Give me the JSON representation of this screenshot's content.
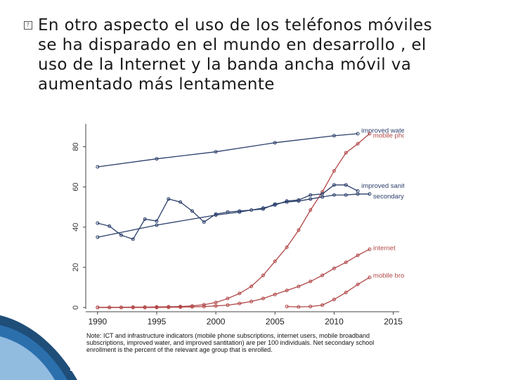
{
  "slide": {
    "bullet_icon": "replacement-box-icon",
    "paragraph": "En otro aspecto el uso de  los teléfonos móviles se ha disparado en el mundo en desarrollo , el uso de la Internet y la banda ancha móvil va aumentado más lentamente",
    "lines": [
      "En otro aspecto el uso de  los teléfonos móviles",
      "se ha disparado en el mundo en desarrollo , el",
      "uso de la Internet y la banda ancha móvil va",
      "aumentado más lentamente"
    ]
  },
  "chart_data": {
    "type": "line",
    "title": "",
    "xlabel": "",
    "ylabel": "",
    "xlim": [
      1989,
      2015.5
    ],
    "ylim": [
      0,
      90
    ],
    "x_ticks": [
      1990,
      1995,
      2000,
      2005,
      2010,
      2015
    ],
    "y_ticks": [
      0,
      20,
      40,
      60,
      80
    ],
    "grid": false,
    "legend": "inline-right",
    "colors": {
      "navy": "#2b3f6b",
      "red": "#b24747"
    },
    "series": [
      {
        "name": "improved water",
        "color": "#2b3f6b",
        "points": [
          [
            1990,
            70
          ],
          [
            1995,
            74
          ],
          [
            2000,
            77.5
          ],
          [
            2005,
            82
          ],
          [
            2010,
            85.5
          ],
          [
            2012,
            86.5
          ]
        ]
      },
      {
        "name": "mobile phone",
        "color": "#b24747",
        "points": [
          [
            1990,
            0.1
          ],
          [
            1991,
            0.1
          ],
          [
            1992,
            0.1
          ],
          [
            1993,
            0.2
          ],
          [
            1994,
            0.2
          ],
          [
            1995,
            0.3
          ],
          [
            1996,
            0.4
          ],
          [
            1997,
            0.5
          ],
          [
            1998,
            0.8
          ],
          [
            1999,
            1.4
          ],
          [
            2000,
            2.5
          ],
          [
            2001,
            4.5
          ],
          [
            2002,
            7
          ],
          [
            2003,
            10.5
          ],
          [
            2004,
            16
          ],
          [
            2005,
            23
          ],
          [
            2006,
            30
          ],
          [
            2007,
            38.5
          ],
          [
            2008,
            48.5
          ],
          [
            2009,
            57.5
          ],
          [
            2010,
            68
          ],
          [
            2011,
            77
          ],
          [
            2012,
            81.5
          ],
          [
            2013,
            86.5
          ]
        ]
      },
      {
        "name": "improved sanitation",
        "color": "#2b3f6b",
        "points": [
          [
            1990,
            35
          ],
          [
            1995,
            41
          ],
          [
            2000,
            46
          ],
          [
            2002,
            47.5
          ],
          [
            2004,
            49.5
          ],
          [
            2005,
            51
          ],
          [
            2006,
            53
          ],
          [
            2007,
            53.5
          ],
          [
            2008,
            56
          ],
          [
            2009,
            56.5
          ],
          [
            2010,
            61
          ],
          [
            2011,
            61
          ],
          [
            2012,
            58
          ]
        ]
      },
      {
        "name": "secondary school",
        "color": "#2b3f6b",
        "points": [
          [
            1990,
            42
          ],
          [
            1991,
            40.5
          ],
          [
            1992,
            36
          ],
          [
            1993,
            34
          ],
          [
            1994,
            44
          ],
          [
            1995,
            43
          ],
          [
            1996,
            54
          ],
          [
            1997,
            52.5
          ],
          [
            1998,
            48
          ],
          [
            1999,
            42.5
          ],
          [
            2000,
            46.5
          ],
          [
            2001,
            47.5
          ],
          [
            2002,
            48
          ],
          [
            2003,
            48.5
          ],
          [
            2004,
            49
          ],
          [
            2005,
            51.5
          ],
          [
            2006,
            52.5
          ],
          [
            2007,
            53
          ],
          [
            2008,
            54
          ],
          [
            2009,
            55
          ],
          [
            2010,
            56
          ],
          [
            2011,
            56
          ],
          [
            2012,
            56.5
          ],
          [
            2013,
            56.5
          ]
        ]
      },
      {
        "name": "internet",
        "color": "#b24747",
        "points": [
          [
            1990,
            0
          ],
          [
            1991,
            0
          ],
          [
            1992,
            0
          ],
          [
            1993,
            0
          ],
          [
            1994,
            0
          ],
          [
            1995,
            0
          ],
          [
            1996,
            0.1
          ],
          [
            1997,
            0.2
          ],
          [
            1998,
            0.3
          ],
          [
            1999,
            0.5
          ],
          [
            2000,
            0.8
          ],
          [
            2001,
            1.2
          ],
          [
            2002,
            2
          ],
          [
            2003,
            3
          ],
          [
            2004,
            4.5
          ],
          [
            2005,
            6.5
          ],
          [
            2006,
            8.5
          ],
          [
            2007,
            10.5
          ],
          [
            2008,
            13
          ],
          [
            2009,
            16
          ],
          [
            2010,
            19.5
          ],
          [
            2011,
            22.5
          ],
          [
            2012,
            26
          ],
          [
            2013,
            29
          ]
        ]
      },
      {
        "name": "mobile broadband",
        "color": "#b24747",
        "points": [
          [
            2006,
            0.5
          ],
          [
            2007,
            0.3
          ],
          [
            2008,
            0.5
          ],
          [
            2009,
            1.2
          ],
          [
            2010,
            4
          ],
          [
            2011,
            7.5
          ],
          [
            2012,
            11.5
          ],
          [
            2013,
            15
          ]
        ]
      }
    ],
    "note": "Note: ICT and infrastructure indicators (mobile phone subscriptions, internet users, mobile broadband subscriptions, improved water, and improved santitation) are per 100 individuals. Net secondary school enrollment is the percent of the relevant age group that is enrolled."
  }
}
